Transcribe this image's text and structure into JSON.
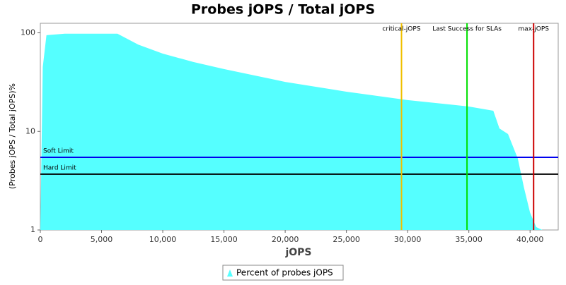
{
  "chart_data": {
    "type": "area",
    "title": "Probes jOPS / Total jOPS",
    "x_label": "jOPS",
    "y_label": "(Probes jOPS / Total jOPS)%",
    "log_y": true,
    "x": [
      0,
      200,
      500,
      2000,
      6300,
      8000,
      10000,
      12500,
      15000,
      20000,
      25000,
      30000,
      35000,
      37000,
      37500,
      38200,
      39000,
      39500,
      40000,
      40500,
      41000,
      42300
    ],
    "series": [
      {
        "name": "Percent of probes jOPS",
        "color": "#55ffff",
        "values": [
          1,
          45,
          94.6,
          98,
          98,
          76,
          61.6,
          50.6,
          42.9,
          31.8,
          25.3,
          20.8,
          17.9,
          16.2,
          10.7,
          9.4,
          5.3,
          2.7,
          1.5,
          1.07,
          1,
          1
        ]
      }
    ],
    "xlim": [
      0,
      42300
    ],
    "ylim": [
      1,
      125
    ],
    "xticks": [
      0,
      {
        "value": 5000,
        "label": "5,000"
      },
      {
        "value": 10000,
        "label": "10,000"
      },
      {
        "value": 15000,
        "label": "15,000"
      },
      {
        "value": 20000,
        "label": "20,000"
      },
      {
        "value": 25000,
        "label": "25,000"
      },
      {
        "value": 30000,
        "label": "30,000"
      },
      {
        "value": 35000,
        "label": "35,000"
      },
      {
        "value": 40000,
        "label": "40,000"
      }
    ],
    "yticks": [
      1,
      10,
      100
    ],
    "vlines": [
      {
        "label": "critical-jOPS",
        "value": 29500,
        "color": "#f0c000"
      },
      {
        "label": "Last Success for SLAs",
        "value": 34850,
        "color": "#00e000"
      },
      {
        "label": "max-jOPS",
        "value": 40290,
        "color": "#cc0000"
      }
    ],
    "hlines": [
      {
        "label": "Soft Limit",
        "value": 5.46,
        "color": "#0000ee"
      },
      {
        "label": "Hard Limit",
        "value": 3.68,
        "color": "#000000"
      }
    ],
    "legend": "bottom"
  }
}
